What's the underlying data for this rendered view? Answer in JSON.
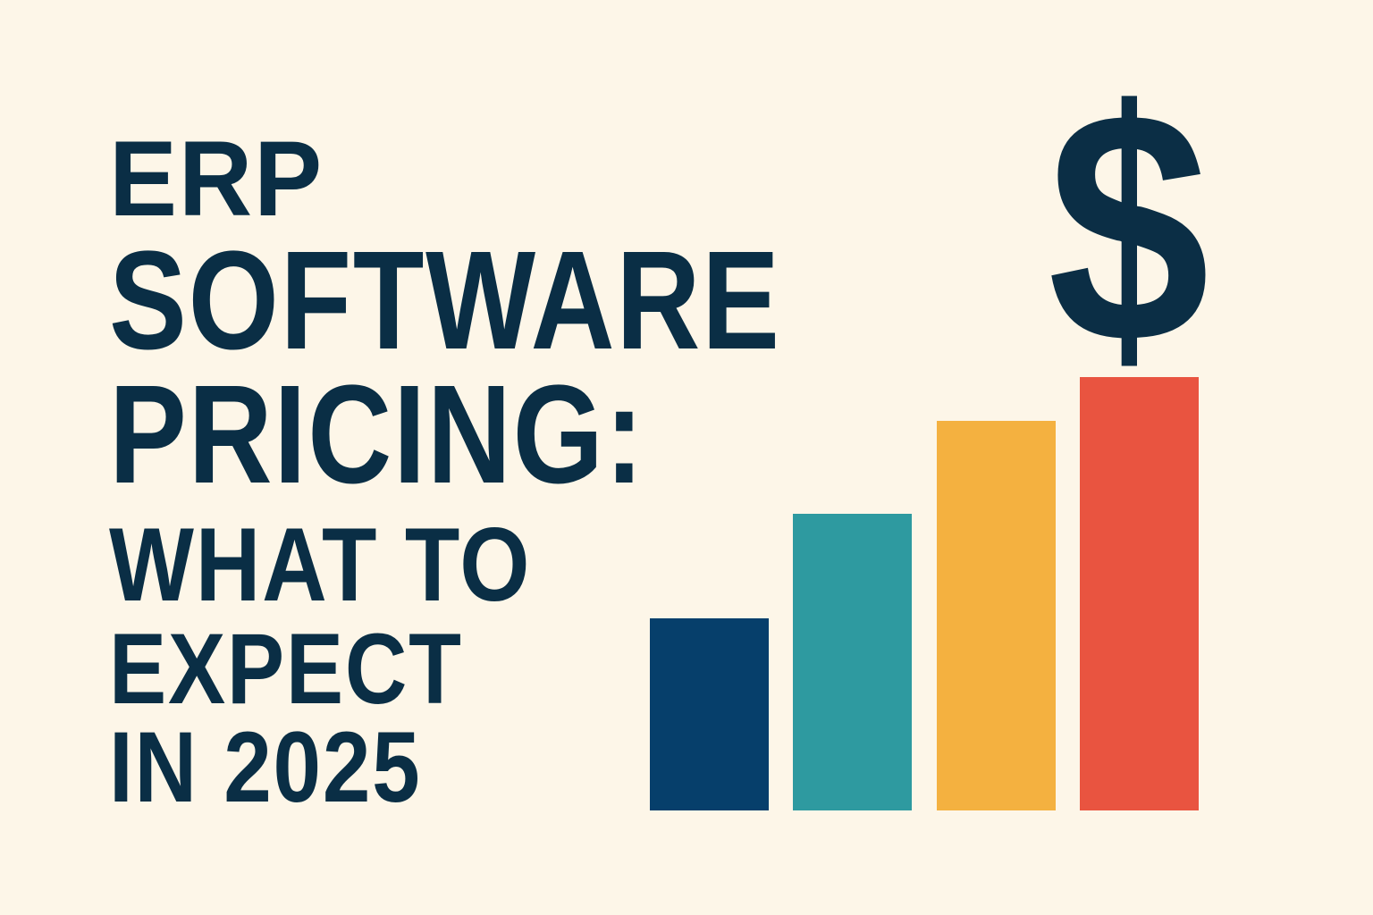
{
  "title": {
    "lines": [
      "ERP",
      "SOFTWARE",
      "PRICING:",
      "WHAT TO",
      "EXPECT",
      "IN 2025"
    ]
  },
  "graphic": {
    "symbol": "$",
    "icon": "dollar-sign-icon",
    "bar_colors": [
      "#063f6b",
      "#2e9aa0",
      "#f4b140",
      "#e95440"
    ]
  },
  "colors": {
    "background": "#fdf6e8",
    "text": "#0a2e45"
  }
}
